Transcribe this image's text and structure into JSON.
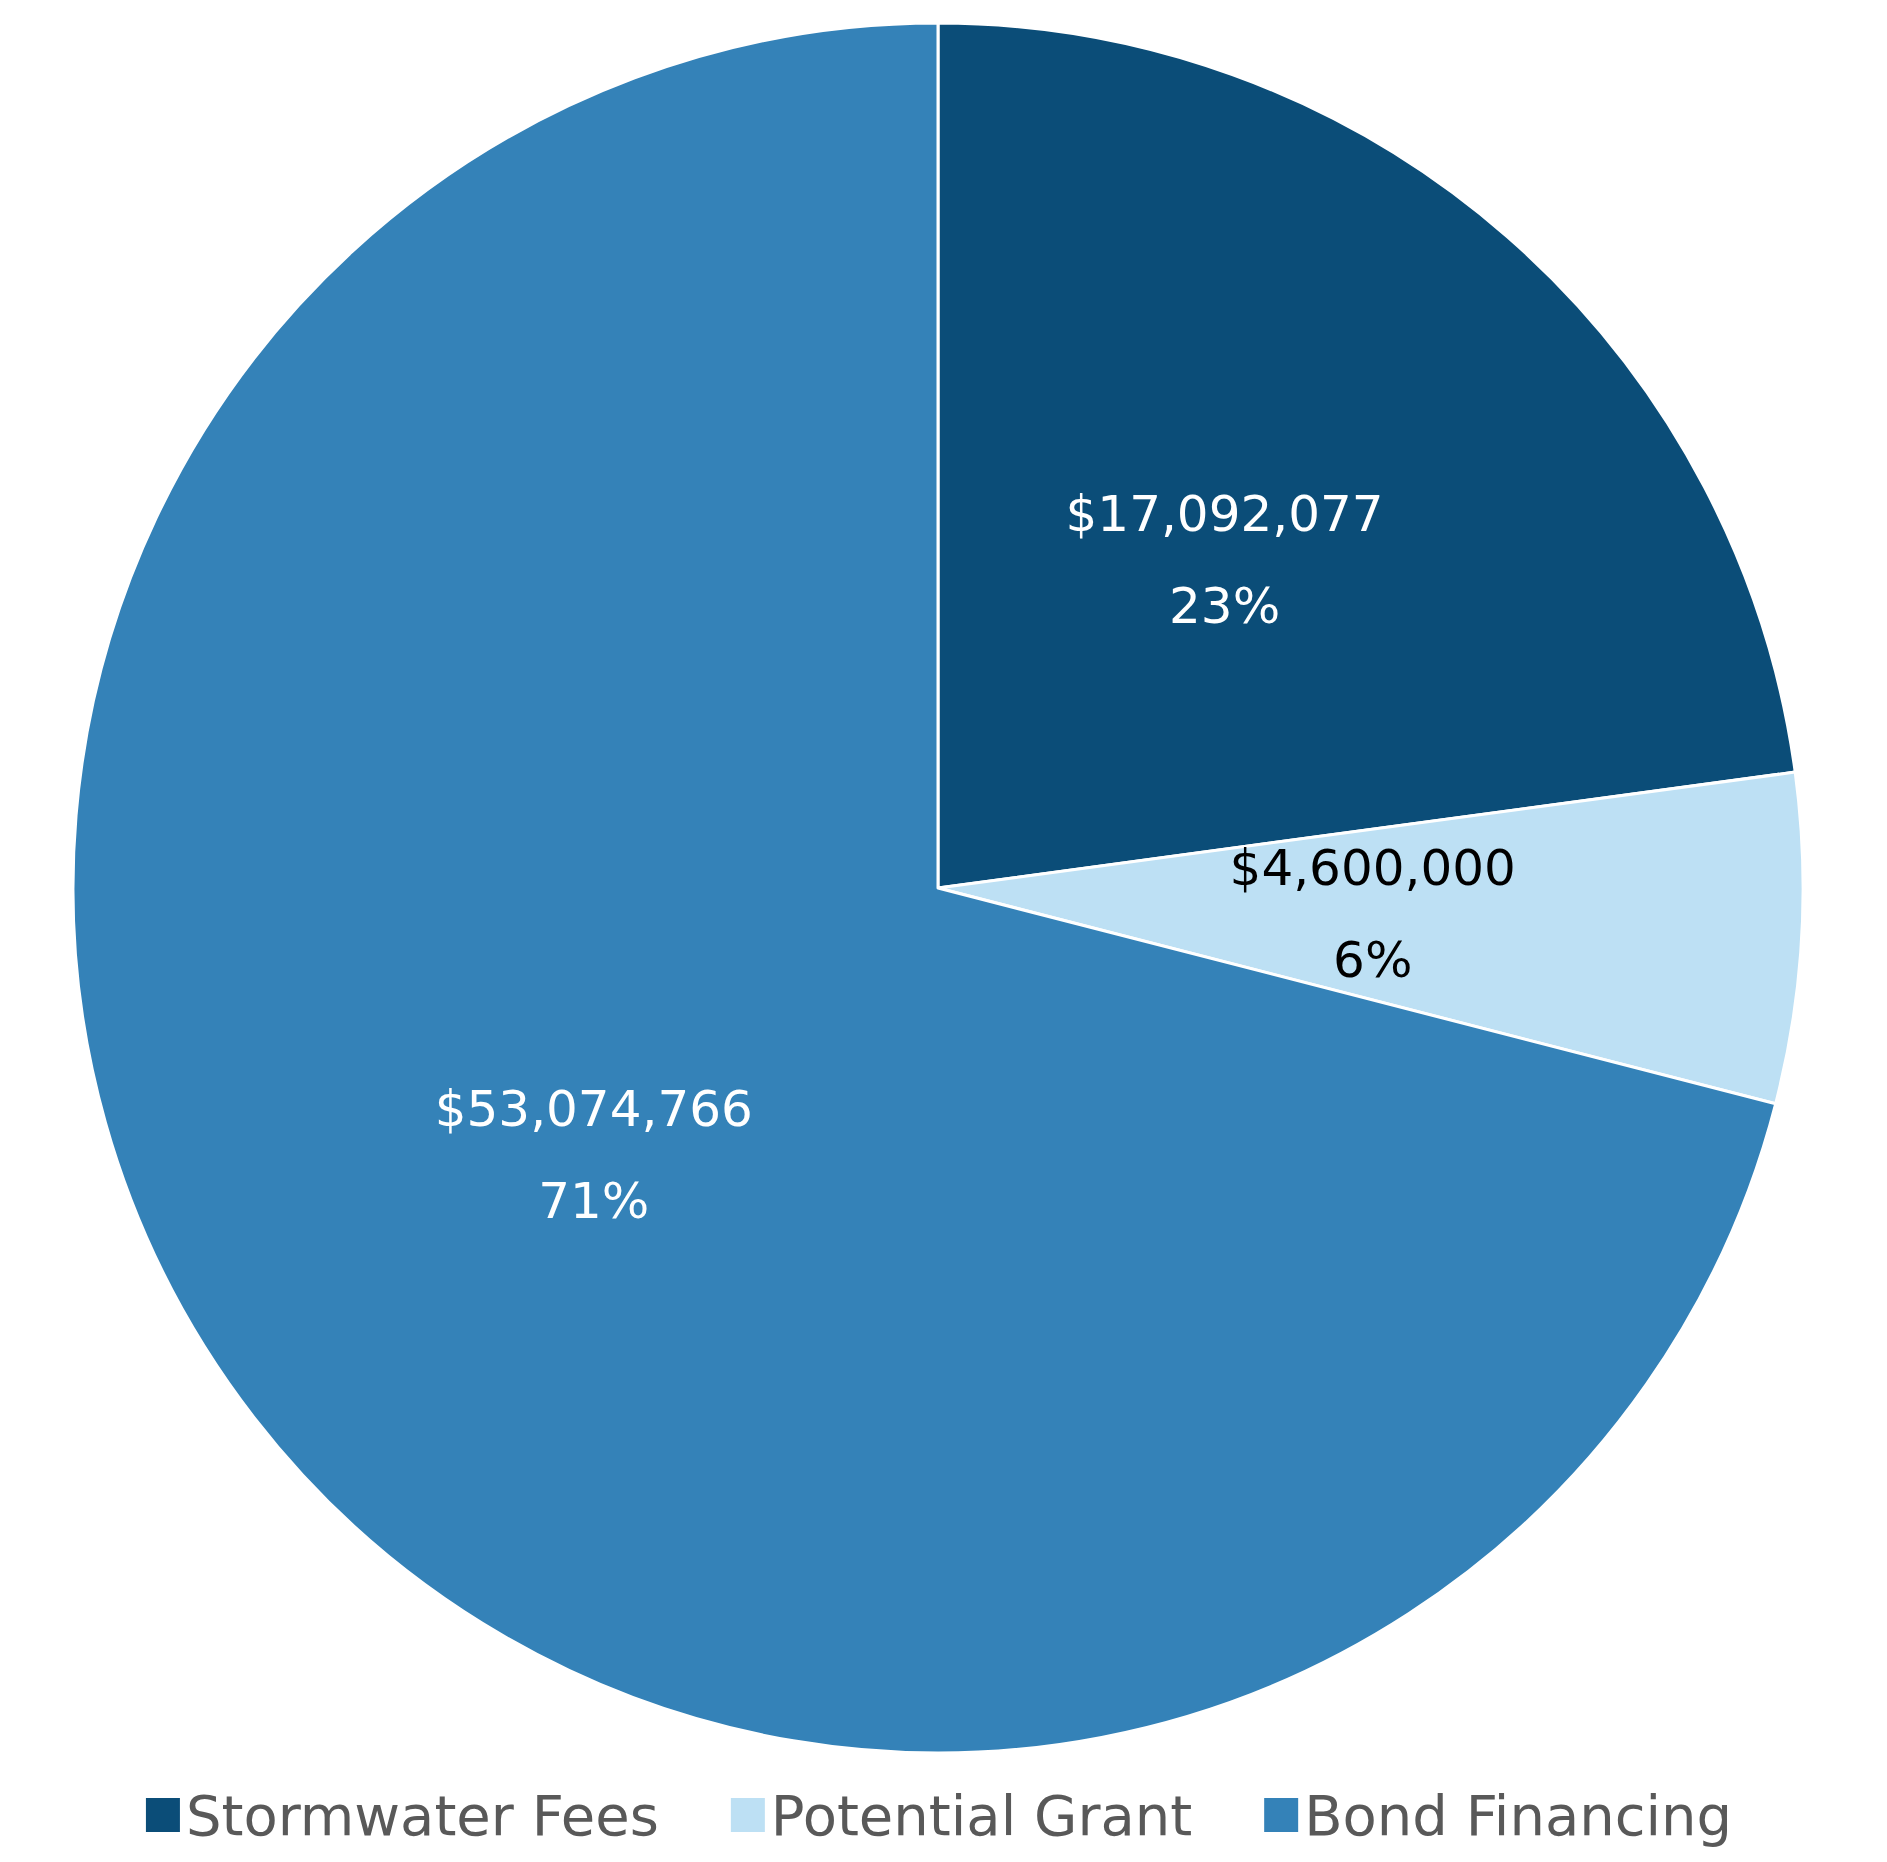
{
  "chart_data": {
    "type": "pie",
    "categories": [
      "Stormwater Fees",
      "Potential Grant",
      "Bond Financing"
    ],
    "values": [
      17092077,
      4600000,
      53074766
    ],
    "colors": [
      "#0b4d78",
      "#bde0f4",
      "#3482b8"
    ],
    "value_labels": [
      "$17,092,077\n23%",
      "$4,600,000\n6%",
      "$53,074,766\n71%"
    ],
    "legend": "bottom"
  }
}
